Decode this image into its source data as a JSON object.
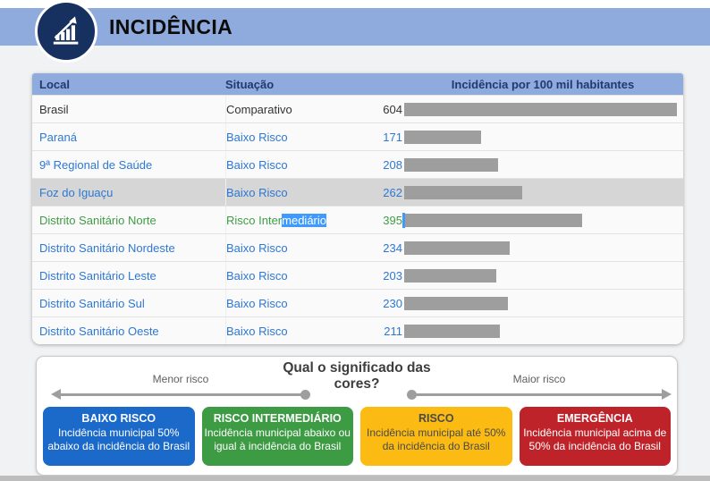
{
  "banner": {
    "title": "INCIDÊNCIA",
    "icon": "bar-chart-rising-icon",
    "bg_color": "#8faadc",
    "icon_circle_color": "#16315f"
  },
  "table": {
    "columns": [
      "Local",
      "Situação",
      "Incidência por 100 mil habitantes"
    ],
    "header_bg": "#8faadc",
    "header_text_color": "#1f3a6e",
    "bar_color": "#9e9e9e",
    "row_highlight_bg": "#d6d6d6",
    "text_selection_bg": "#3e9bfd",
    "link_blue": "#2e78d2",
    "green": "#3f9c45",
    "rows": [
      {
        "local": "Brasil",
        "situacao": "Comparativo",
        "value": 604,
        "color": "dark"
      },
      {
        "local": "Paraná",
        "situacao": "Baixo Risco",
        "value": 171,
        "color": "blue"
      },
      {
        "local": "9ª Regional de Saúde",
        "situacao": "Baixo Risco",
        "value": 208,
        "color": "blue"
      },
      {
        "local": "Foz do Iguaçu",
        "situacao": "Baixo Risco",
        "value": 262,
        "color": "blue",
        "highlighted": true
      },
      {
        "local": "Distrito Sanitário Norte",
        "situacao": "Risco Intermediário",
        "situacao_selected_part": "mediário",
        "value": 395,
        "color": "green",
        "caret": true
      },
      {
        "local": "Distrito Sanitário Nordeste",
        "situacao": "Baixo Risco",
        "value": 234,
        "color": "blue"
      },
      {
        "local": "Distrito Sanitário Leste",
        "situacao": "Baixo Risco",
        "value": 203,
        "color": "blue"
      },
      {
        "local": "Distrito Sanitário Sul",
        "situacao": "Baixo Risco",
        "value": 230,
        "color": "blue"
      },
      {
        "local": "Distrito Sanitário Oeste",
        "situacao": "Baixo Risco",
        "value": 211,
        "color": "blue"
      }
    ]
  },
  "legend": {
    "title": "Qual o significado das cores?",
    "left_label": "Menor risco",
    "right_label": "Maior risco",
    "boxes": [
      {
        "title": "BAIXO RISCO",
        "body": "Incidência municipal 50% abaixo da incidência do Brasil",
        "bg": "#1b6ac9",
        "text": "#ffffff"
      },
      {
        "title": "RISCO INTERMEDIÁRIO",
        "body": "Incidência municipal abaixo ou igual à incidência do Brasil",
        "bg": "#3d9b44",
        "text": "#ffffff"
      },
      {
        "title": "RISCO",
        "body": "Incidência municipal até 50% da incidência do Brasil",
        "bg": "#fbbb12",
        "text": "#4a4a4a"
      },
      {
        "title": "EMERGÊNCIA",
        "body": "Incidência municipal acima de 50% da incidência do Brasil",
        "bg": "#bf232a",
        "text": "#ffffff"
      }
    ]
  },
  "chart_data": {
    "type": "bar",
    "orientation": "horizontal",
    "title": "Incidência por 100 mil habitantes",
    "categories": [
      "Brasil",
      "Paraná",
      "9ª Regional de Saúde",
      "Foz do Iguaçu",
      "Distrito Sanitário Norte",
      "Distrito Sanitário Nordeste",
      "Distrito Sanitário Leste",
      "Distrito Sanitário Sul",
      "Distrito Sanitário Oeste"
    ],
    "values": [
      604,
      171,
      208,
      262,
      395,
      234,
      203,
      230,
      211
    ],
    "xlabel": "",
    "ylabel": "",
    "xlim": [
      0,
      604
    ],
    "bar_color": "#9e9e9e"
  }
}
